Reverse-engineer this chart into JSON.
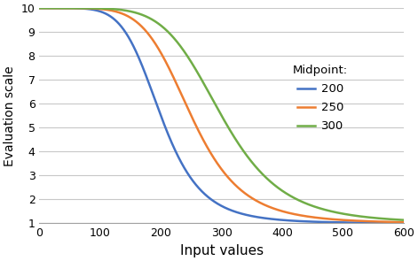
{
  "title": "",
  "xlabel": "Input values",
  "ylabel": "Evaluation scale",
  "xlim": [
    0,
    600
  ],
  "ylim": [
    1,
    10
  ],
  "xticks": [
    0,
    100,
    200,
    300,
    400,
    500,
    600
  ],
  "yticks": [
    1,
    2,
    3,
    4,
    5,
    6,
    7,
    8,
    9,
    10
  ],
  "midpoints": [
    200,
    250,
    300
  ],
  "k": 6,
  "line_colors": [
    "#4472C4",
    "#ED7D31",
    "#70AD47"
  ],
  "legend_title": "Midpoint:",
  "legend_labels": [
    "200",
    "250",
    "300"
  ],
  "background_color": "#FFFFFF",
  "grid_color": "#C8C8C8",
  "xlabel_fontsize": 11,
  "ylabel_fontsize": 10,
  "legend_fontsize": 9.5,
  "legend_title_fontsize": 9.5,
  "tick_fontsize": 9,
  "line_width": 1.8,
  "y_min": 1.0,
  "y_max": 10.0
}
